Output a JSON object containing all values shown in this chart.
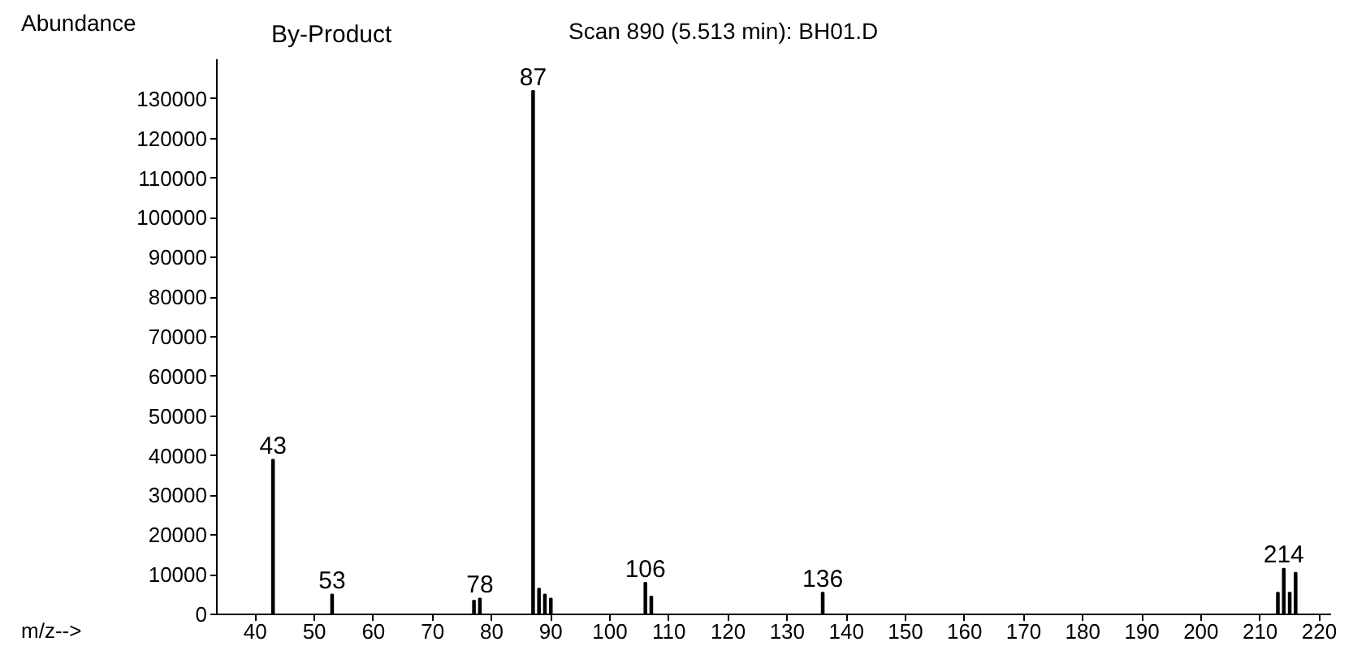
{
  "chart_data": {
    "type": "bar",
    "title": "By-Product",
    "subtitle": "Scan 890 (5.513 min): BH01.D",
    "xlabel": "m/z-->",
    "ylabel": "Abundance",
    "x": [
      43,
      53,
      77,
      78,
      87,
      88,
      89,
      90,
      106,
      107,
      136,
      213,
      214,
      215,
      216
    ],
    "values": [
      39000,
      5000,
      3500,
      4000,
      132000,
      6500,
      5000,
      4000,
      8000,
      4500,
      5500,
      5500,
      11500,
      5500,
      10500
    ],
    "color": "#000000",
    "annotations": [
      {
        "text": "43",
        "x": 43,
        "y": 39000
      },
      {
        "text": "53",
        "x": 53,
        "y": 5000
      },
      {
        "text": "78",
        "x": 78,
        "y": 4000
      },
      {
        "text": "87",
        "x": 87,
        "y": 132000
      },
      {
        "text": "106",
        "x": 106,
        "y": 8000
      },
      {
        "text": "136",
        "x": 136,
        "y": 5500
      },
      {
        "text": "214",
        "x": 214,
        "y": 11500
      }
    ],
    "xlim": [
      33.5,
      222
    ],
    "ylim": [
      0,
      140000
    ],
    "xticks": [
      40,
      50,
      60,
      70,
      80,
      90,
      100,
      110,
      120,
      130,
      140,
      150,
      160,
      170,
      180,
      190,
      200,
      210,
      220
    ],
    "yticks": [
      0,
      10000,
      20000,
      30000,
      40000,
      50000,
      60000,
      70000,
      80000,
      90000,
      100000,
      110000,
      120000,
      130000
    ],
    "grid": false
  }
}
